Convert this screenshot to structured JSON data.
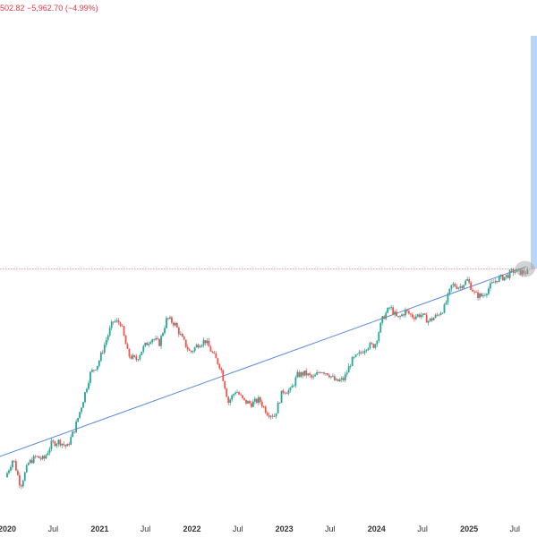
{
  "header": {
    "price_change": "502.82  −5,962.70 (−4.99%)"
  },
  "colors": {
    "up": "#26a69a",
    "down": "#ef5350",
    "trendline": "#5b8bd9",
    "price_line": "#f28b82",
    "highlight": "#7fb3f0",
    "marker": "#9e9e9e"
  },
  "chart_data": {
    "type": "candlestick",
    "title": "",
    "xlabel": "",
    "ylabel": "",
    "x_tick_labels": [
      "2020",
      "Jul",
      "2021",
      "Jul",
      "2022",
      "Jul",
      "2023",
      "Jul",
      "2024",
      "Jul",
      "2025",
      "Jul"
    ],
    "year_ticks": [
      "2020",
      "2021",
      "2022",
      "2023",
      "2024",
      "2025"
    ],
    "x_range": [
      "2020-01-01",
      "2025-08-20"
    ],
    "y_scale": "log",
    "y_range": [
      3500,
      1500000
    ],
    "grid": false,
    "series": [
      {
        "values_note": "",
        "points": [
          [
            "2020-01-01",
            7200
          ],
          [
            "2020-02-01",
            9300
          ],
          [
            "2020-03-01",
            6400
          ],
          [
            "2020-04-01",
            8700
          ],
          [
            "2020-05-01",
            9500
          ],
          [
            "2020-06-01",
            9150
          ],
          [
            "2020-07-01",
            11300
          ],
          [
            "2020-08-01",
            11700
          ],
          [
            "2020-09-01",
            10800
          ],
          [
            "2020-10-01",
            13800
          ],
          [
            "2020-11-01",
            19700
          ],
          [
            "2020-12-01",
            29000
          ],
          [
            "2021-01-01",
            33100
          ],
          [
            "2021-02-01",
            45000
          ],
          [
            "2021-03-01",
            58800
          ],
          [
            "2021-04-01",
            57700
          ],
          [
            "2021-05-01",
            37300
          ],
          [
            "2021-06-01",
            35000
          ],
          [
            "2021-07-01",
            41500
          ],
          [
            "2021-08-01",
            47100
          ],
          [
            "2021-09-01",
            43800
          ],
          [
            "2021-10-01",
            61300
          ],
          [
            "2021-11-01",
            57000
          ],
          [
            "2021-12-01",
            46300
          ],
          [
            "2022-01-01",
            38500
          ],
          [
            "2022-02-01",
            43200
          ],
          [
            "2022-03-01",
            45500
          ],
          [
            "2022-04-01",
            37700
          ],
          [
            "2022-05-01",
            31800
          ],
          [
            "2022-06-01",
            19800
          ],
          [
            "2022-07-01",
            23300
          ],
          [
            "2022-08-01",
            20000
          ],
          [
            "2022-09-01",
            19400
          ],
          [
            "2022-10-01",
            20500
          ],
          [
            "2022-11-01",
            17200
          ],
          [
            "2022-12-01",
            16500
          ],
          [
            "2023-01-01",
            23100
          ],
          [
            "2023-02-01",
            23100
          ],
          [
            "2023-03-01",
            28500
          ],
          [
            "2023-04-01",
            29200
          ],
          [
            "2023-05-01",
            27200
          ],
          [
            "2023-06-01",
            30500
          ],
          [
            "2023-07-01",
            29200
          ],
          [
            "2023-08-01",
            26000
          ],
          [
            "2023-09-01",
            27000
          ],
          [
            "2023-10-01",
            34500
          ],
          [
            "2023-11-01",
            37700
          ],
          [
            "2023-12-01",
            42300
          ],
          [
            "2024-01-01",
            42600
          ],
          [
            "2024-02-01",
            61200
          ],
          [
            "2024-03-01",
            71300
          ],
          [
            "2024-04-01",
            60600
          ],
          [
            "2024-05-01",
            67500
          ],
          [
            "2024-06-01",
            62700
          ],
          [
            "2024-07-01",
            64600
          ],
          [
            "2024-08-01",
            59000
          ],
          [
            "2024-09-01",
            63300
          ],
          [
            "2024-10-01",
            70200
          ],
          [
            "2024-11-01",
            96400
          ],
          [
            "2024-12-01",
            93400
          ],
          [
            "2025-01-01",
            102400
          ],
          [
            "2025-02-01",
            84300
          ],
          [
            "2025-03-01",
            82500
          ],
          [
            "2025-04-01",
            94200
          ],
          [
            "2025-05-01",
            104600
          ],
          [
            "2025-06-01",
            107100
          ],
          [
            "2025-07-01",
            115700
          ],
          [
            "2025-08-01",
            114000
          ]
        ]
      }
    ],
    "trendline": {
      "from": [
        "2019-12-01",
        9500
      ],
      "to": [
        "2025-08-15",
        123000
      ]
    },
    "horizontal_level": 119000,
    "highlight_marker": [
      "2025-08-10",
      119000
    ]
  }
}
